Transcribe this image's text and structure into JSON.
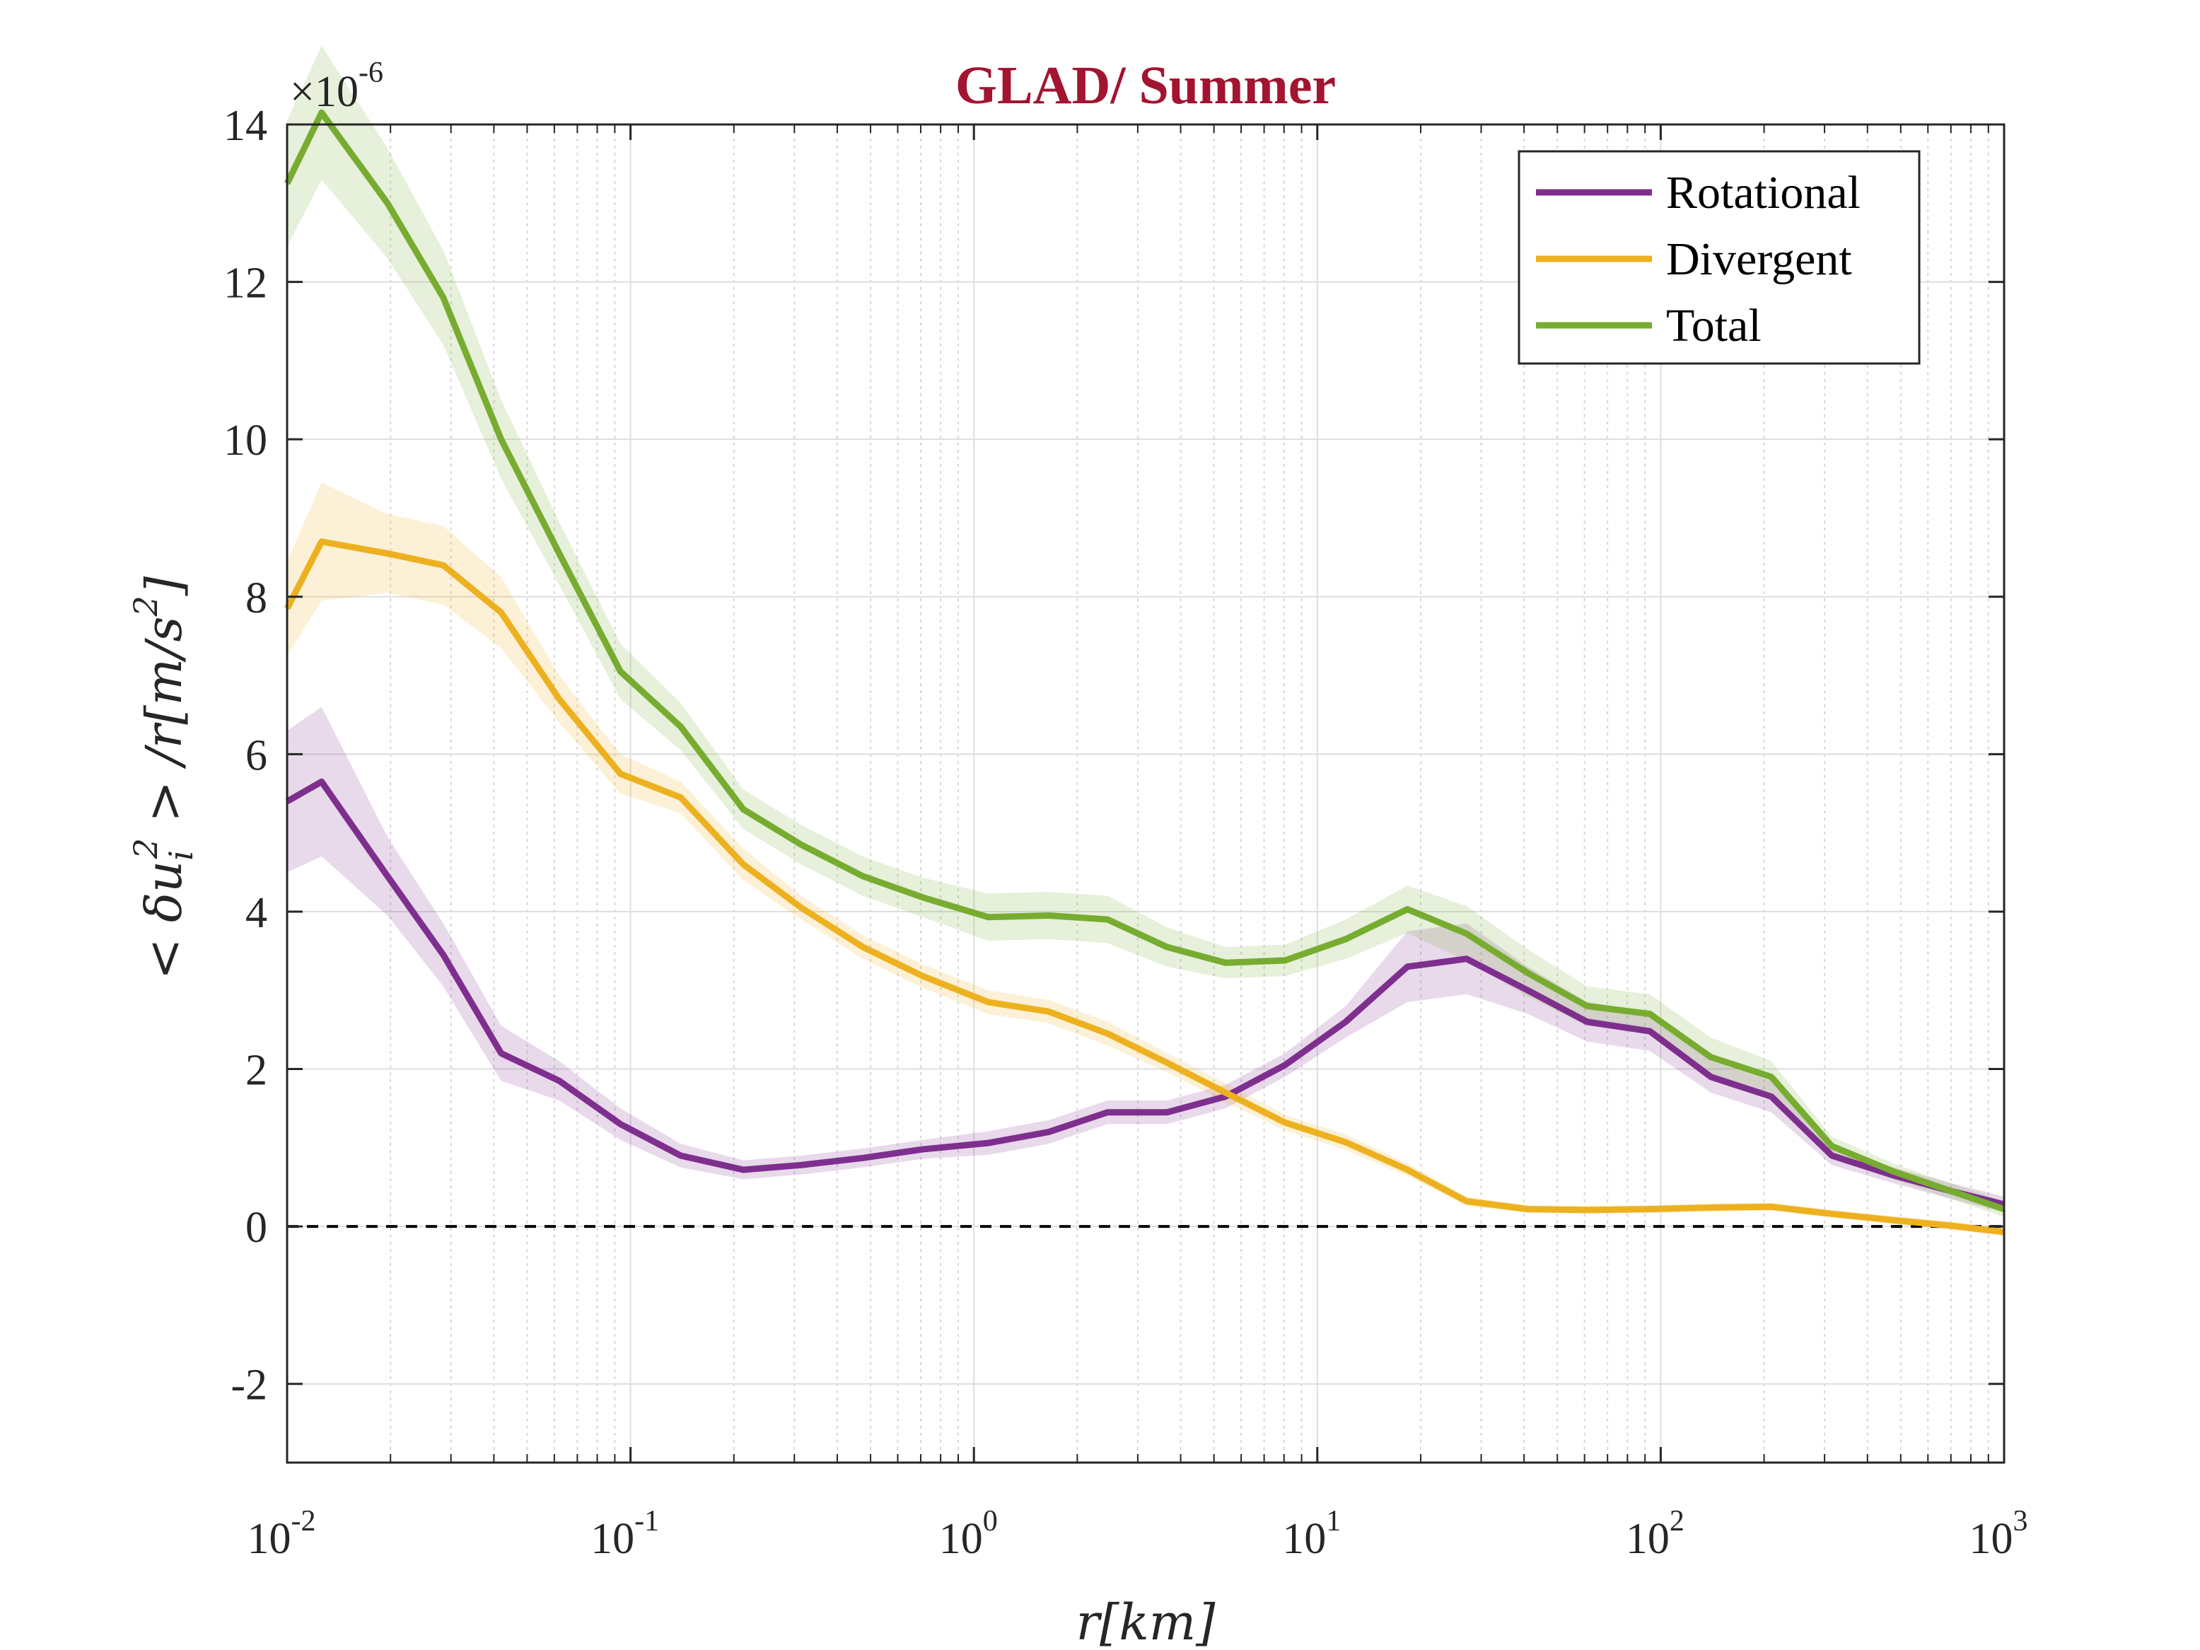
{
  "chart_data": {
    "type": "line",
    "title": "GLAD/ Summer",
    "xlabel": "r[km]",
    "ylabel": "< δu_i^2 > /r[m/s^2]",
    "ylabel_parts": {
      "pre": "< δu",
      "sub": "i",
      "sup": "2",
      "post": " > /r[m/s",
      "sup2": "2",
      "close": "]"
    },
    "y_multiplier": {
      "base": "×10",
      "exp": "-6"
    },
    "xscale": "log",
    "xlim": [
      0.01,
      1000
    ],
    "ylim": [
      -3,
      14
    ],
    "x_ticks": [
      {
        "base": "10",
        "exp": "-2",
        "value": 0.01
      },
      {
        "base": "10",
        "exp": "-1",
        "value": 0.1
      },
      {
        "base": "10",
        "exp": "0",
        "value": 1
      },
      {
        "base": "10",
        "exp": "1",
        "value": 10
      },
      {
        "base": "10",
        "exp": "2",
        "value": 100
      },
      {
        "base": "10",
        "exp": "3",
        "value": 1000
      }
    ],
    "y_ticks": [
      -2,
      0,
      2,
      4,
      6,
      8,
      10,
      12,
      14
    ],
    "grid": true,
    "zero_line": {
      "y": 0,
      "style": "dashed",
      "color": "#000000"
    },
    "legend_position": "top-right",
    "x": [
      0.01,
      0.0126,
      0.0196,
      0.0285,
      0.042,
      0.062,
      0.0935,
      0.14,
      0.213,
      0.314,
      0.475,
      0.71,
      1.1,
      1.65,
      2.45,
      3.65,
      5.4,
      8.05,
      12.1,
      18.3,
      27.2,
      41,
      61,
      93,
      140,
      210,
      315,
      475,
      700,
      1000
    ],
    "series": [
      {
        "name": "Rotational",
        "color": "#7e2f8e",
        "values": [
          5.4,
          5.65,
          4.45,
          3.45,
          2.2,
          1.85,
          1.3,
          0.9,
          0.72,
          0.78,
          0.87,
          0.98,
          1.06,
          1.2,
          1.45,
          1.45,
          1.65,
          2.05,
          2.6,
          3.3,
          3.4,
          3.0,
          2.6,
          2.48,
          1.9,
          1.65,
          0.9,
          0.65,
          0.45,
          0.28
        ],
        "band": [
          0.9,
          0.95,
          0.5,
          0.4,
          0.35,
          0.25,
          0.2,
          0.15,
          0.12,
          0.12,
          0.12,
          0.12,
          0.15,
          0.15,
          0.15,
          0.15,
          0.15,
          0.15,
          0.2,
          0.45,
          0.45,
          0.3,
          0.25,
          0.25,
          0.2,
          0.2,
          0.12,
          0.1,
          0.1,
          0.1
        ]
      },
      {
        "name": "Divergent",
        "color": "#edb120",
        "values": [
          7.85,
          8.7,
          8.55,
          8.4,
          7.8,
          6.7,
          5.75,
          5.45,
          4.6,
          4.05,
          3.55,
          3.18,
          2.85,
          2.73,
          2.45,
          2.08,
          1.7,
          1.32,
          1.07,
          0.72,
          0.32,
          0.22,
          0.21,
          0.22,
          0.24,
          0.25,
          0.16,
          0.08,
          0.01,
          -0.07
        ],
        "band": [
          0.6,
          0.75,
          0.5,
          0.5,
          0.45,
          0.3,
          0.25,
          0.2,
          0.2,
          0.15,
          0.15,
          0.15,
          0.15,
          0.15,
          0.15,
          0.12,
          0.12,
          0.1,
          0.1,
          0.08,
          0.06,
          0.05,
          0.05,
          0.05,
          0.05,
          0.05,
          0.05,
          0.05,
          0.05,
          0.05
        ]
      },
      {
        "name": "Total",
        "color": "#77ac30",
        "values": [
          13.25,
          14.15,
          13.0,
          11.8,
          10.0,
          8.55,
          7.05,
          6.35,
          5.3,
          4.85,
          4.45,
          4.18,
          3.93,
          3.95,
          3.9,
          3.55,
          3.35,
          3.38,
          3.65,
          4.03,
          3.72,
          3.22,
          2.8,
          2.7,
          2.15,
          1.9,
          1.02,
          0.7,
          0.45,
          0.22
        ],
        "band": [
          0.8,
          0.85,
          0.7,
          0.6,
          0.5,
          0.4,
          0.35,
          0.3,
          0.25,
          0.25,
          0.25,
          0.25,
          0.3,
          0.3,
          0.3,
          0.25,
          0.2,
          0.2,
          0.25,
          0.3,
          0.35,
          0.3,
          0.25,
          0.25,
          0.25,
          0.2,
          0.12,
          0.1,
          0.1,
          0.1
        ]
      }
    ]
  }
}
